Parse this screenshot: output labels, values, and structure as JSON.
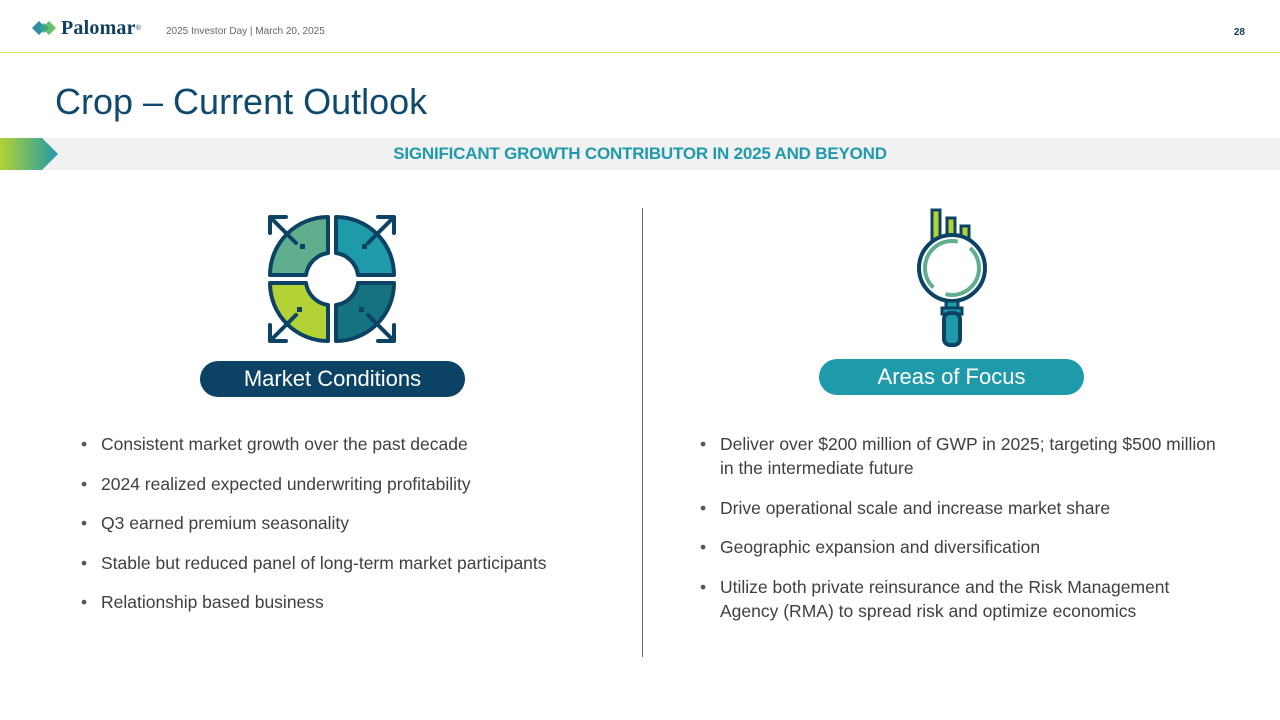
{
  "header": {
    "logo_text": "Palomar",
    "logo_reg": "®",
    "subtitle": "2025 Investor Day | March 20, 2025",
    "page_number": "28"
  },
  "title": "Crop – Current Outlook",
  "banner": {
    "text": "SIGNIFICANT GROWTH CONTRIBUTOR IN 2025 AND BEYOND"
  },
  "left": {
    "heading": "Market Conditions",
    "bullets": [
      "Consistent market growth over the past decade",
      "2024 realized expected underwriting profitability",
      "Q3 earned premium seasonality",
      "Stable but reduced panel of long-term market participants",
      "Relationship based business"
    ]
  },
  "right": {
    "heading": "Areas of Focus",
    "bullets": [
      "Deliver over $200 million of GWP in 2025; targeting $500 million in the intermediate future",
      "Drive operational scale and increase market share",
      "Geographic expansion and diversification",
      "Utilize both private reinsurance and the Risk Management Agency (RMA) to spread risk and optimize economics"
    ]
  },
  "colors": {
    "navy": "#0c4364",
    "teal": "#1f9aab",
    "green": "#b2d235",
    "sage": "#5fae8e",
    "dark_teal": "#157380"
  }
}
